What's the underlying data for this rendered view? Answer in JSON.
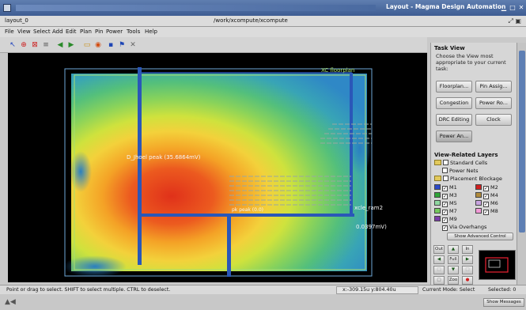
{
  "app": {
    "title": "Layout - Magma Design Automation",
    "window_name": "layout_0",
    "path": "/work/xcompute/xcompute"
  },
  "menu": [
    "File",
    "View",
    "Select",
    "Add",
    "Edit",
    "Plan",
    "Pin",
    "Power",
    "Tools",
    "Help"
  ],
  "canvas": {
    "label_floorplan": "XC floorplan",
    "label_peak": "D_Jhoel peak (35.6864mV)",
    "label_peak2": "pk peak (0.0)",
    "label_ram": "xcle_ram2",
    "label_value": "0.0397mV)",
    "colors": {
      "hot": "#e0311a",
      "warm": "#f4a226",
      "mid": "#d7e23c",
      "cool": "#5fc06e",
      "cold": "#2f8fc8",
      "boundary": "#2a57b8"
    }
  },
  "task_view": {
    "heading": "Task View",
    "description": "Choose the View most appropriate to your current task:",
    "buttons": [
      "Floorplan...",
      "Pin Assig...",
      "Congestion",
      "Power Ro...",
      "DRC Editing",
      "Clock",
      "Power An..."
    ],
    "layers_heading": "View-Related Layers",
    "layer_groups": [
      "Standard Cells",
      "Power Nets",
      "Placement Blockage"
    ],
    "layers": [
      {
        "name": "M1",
        "color": "#2c49c8"
      },
      {
        "name": "M2",
        "color": "#d02020"
      },
      {
        "name": "M3",
        "color": "#2fa437"
      },
      {
        "name": "M4",
        "color": "#b08a3a"
      },
      {
        "name": "M5",
        "color": "#8fd7a0"
      },
      {
        "name": "M6",
        "color": "#c8a4e0"
      },
      {
        "name": "M7",
        "color": "#74c95c"
      },
      {
        "name": "M8",
        "color": "#f29ad7"
      },
      {
        "name": "M9",
        "color": "#7a3ca8"
      }
    ],
    "via_overhangs": "Via Overhangs",
    "show_advanced": "Show Advanced Control",
    "nav": {
      "out": "Out",
      "in": "In",
      "full": "Full",
      "zoom": "Zoo"
    }
  },
  "status": {
    "hint": "Point or drag to select. SHIFT to select multiple. CTRL to deselect.",
    "coords": "x:-309.15u y:804.40u",
    "mode": "Current Mode: Select",
    "selected": "Selected: 0"
  },
  "bottom": {
    "show_messages": "Show Messages"
  }
}
